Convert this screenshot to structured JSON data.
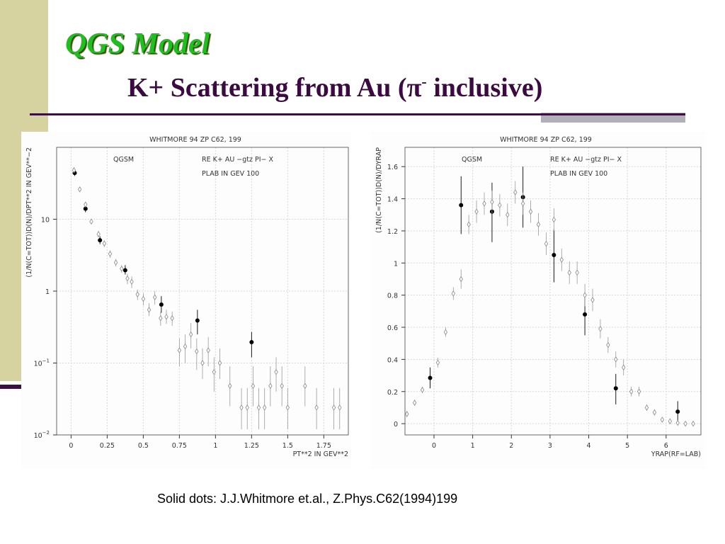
{
  "slide": {
    "title": "QGS Model",
    "subtitle_prefix": "K+ Scattering from Au (",
    "subtitle_pi": "π",
    "subtitle_sup": "-",
    "subtitle_suffix": " inclusive)",
    "caption": "Solid dots: J.J.Whitmore et.al., Z.Phys.C62(1994)199",
    "colors": {
      "title": "#1fbf1f",
      "subtitle": "#3a0a40",
      "sidebar": "#d6d3a0",
      "rule": "#3a1040"
    }
  },
  "chart_data": [
    {
      "type": "scatter",
      "header": "WHITMORE 94   ZP C62, 199",
      "model_label": "QGSM",
      "info_line1": "RE   K+ AU −gtz PI−  X",
      "info_line2": "PLAB IN GEV   100",
      "xlabel": "PT**2 IN GEV**2",
      "ylabel": "(1/N(C=TOT))D(N)/DPT**2 IN GEV**−2",
      "xlim": [
        -0.1,
        1.92
      ],
      "ylim": [
        0.01,
        100
      ],
      "yscale": "log",
      "grid": true,
      "xticks": [
        {
          "v": 0,
          "label": "0"
        },
        {
          "v": 0.25,
          "label": "0.25"
        },
        {
          "v": 0.5,
          "label": "0.5"
        },
        {
          "v": 0.75,
          "label": "0.75"
        },
        {
          "v": 1,
          "label": "1"
        },
        {
          "v": 1.25,
          "label": "1.25"
        },
        {
          "v": 1.5,
          "label": "1.5"
        },
        {
          "v": 1.75,
          "label": "1.75"
        }
      ],
      "yticks": [
        {
          "v": 0.01,
          "base": "10",
          "exp": "−2"
        },
        {
          "v": 0.1,
          "base": "10",
          "exp": "−1"
        },
        {
          "v": 1,
          "base": "1",
          "exp": ""
        },
        {
          "v": 10,
          "base": "10",
          "exp": ""
        }
      ],
      "series": [
        {
          "name": "Solid dots: J.J.Whitmore et.al., Z.Phys.C62(1994)199",
          "marker": "filled-circle",
          "points": [
            {
              "x": 0.025,
              "y": 44,
              "lo": 40,
              "hi": 48
            },
            {
              "x": 0.1,
              "y": 14,
              "lo": 12.5,
              "hi": 15.5
            },
            {
              "x": 0.2,
              "y": 5.1,
              "lo": 4.5,
              "hi": 5.8
            },
            {
              "x": 0.375,
              "y": 1.95,
              "lo": 1.7,
              "hi": 2.3
            },
            {
              "x": 0.625,
              "y": 0.65,
              "lo": 0.5,
              "hi": 0.85
            },
            {
              "x": 0.875,
              "y": 0.39,
              "lo": 0.25,
              "hi": 0.55
            },
            {
              "x": 1.25,
              "y": 0.195,
              "lo": 0.12,
              "hi": 0.27
            }
          ]
        },
        {
          "marker": "open-diamond",
          "points": [
            {
              "x": 0.02,
              "y": 48,
              "lo": 44,
              "hi": 53
            },
            {
              "x": 0.06,
              "y": 26,
              "lo": 24,
              "hi": 28
            },
            {
              "x": 0.1,
              "y": 16,
              "lo": 14.5,
              "hi": 17.5
            },
            {
              "x": 0.14,
              "y": 9.3,
              "lo": 8.5,
              "hi": 10.1
            },
            {
              "x": 0.19,
              "y": 6.2,
              "lo": 5.6,
              "hi": 6.9
            },
            {
              "x": 0.23,
              "y": 4.6,
              "lo": 4.1,
              "hi": 5.1
            },
            {
              "x": 0.27,
              "y": 3.3,
              "lo": 2.9,
              "hi": 3.7
            },
            {
              "x": 0.31,
              "y": 2.5,
              "lo": 2.2,
              "hi": 2.8
            },
            {
              "x": 0.35,
              "y": 2.05,
              "lo": 1.8,
              "hi": 2.3
            },
            {
              "x": 0.39,
              "y": 1.5,
              "lo": 1.25,
              "hi": 1.75
            },
            {
              "x": 0.42,
              "y": 1.35,
              "lo": 1.1,
              "hi": 1.6
            },
            {
              "x": 0.46,
              "y": 0.9,
              "lo": 0.75,
              "hi": 1.05
            },
            {
              "x": 0.5,
              "y": 0.78,
              "lo": 0.63,
              "hi": 0.93
            },
            {
              "x": 0.54,
              "y": 0.55,
              "lo": 0.45,
              "hi": 0.68
            },
            {
              "x": 0.58,
              "y": 0.82,
              "lo": 0.65,
              "hi": 1.0
            },
            {
              "x": 0.62,
              "y": 0.42,
              "lo": 0.33,
              "hi": 0.52
            },
            {
              "x": 0.66,
              "y": 0.44,
              "lo": 0.35,
              "hi": 0.55
            },
            {
              "x": 0.7,
              "y": 0.42,
              "lo": 0.33,
              "hi": 0.52
            },
            {
              "x": 0.75,
              "y": 0.15,
              "lo": 0.09,
              "hi": 0.22
            },
            {
              "x": 0.79,
              "y": 0.17,
              "lo": 0.1,
              "hi": 0.25
            },
            {
              "x": 0.83,
              "y": 0.25,
              "lo": 0.16,
              "hi": 0.36
            },
            {
              "x": 0.87,
              "y": 0.145,
              "lo": 0.08,
              "hi": 0.22
            },
            {
              "x": 0.91,
              "y": 0.1,
              "lo": 0.06,
              "hi": 0.16
            },
            {
              "x": 0.95,
              "y": 0.15,
              "lo": 0.09,
              "hi": 0.23
            },
            {
              "x": 0.99,
              "y": 0.075,
              "lo": 0.04,
              "hi": 0.12
            },
            {
              "x": 1.03,
              "y": 0.1,
              "lo": 0.06,
              "hi": 0.16
            },
            {
              "x": 1.1,
              "y": 0.048,
              "lo": 0.025,
              "hi": 0.09
            },
            {
              "x": 1.18,
              "y": 0.024,
              "lo": 0.012,
              "hi": 0.045
            },
            {
              "x": 1.22,
              "y": 0.024,
              "lo": 0.012,
              "hi": 0.045
            },
            {
              "x": 1.26,
              "y": 0.048,
              "lo": 0.025,
              "hi": 0.09
            },
            {
              "x": 1.3,
              "y": 0.024,
              "lo": 0.012,
              "hi": 0.045
            },
            {
              "x": 1.34,
              "y": 0.024,
              "lo": 0.012,
              "hi": 0.045
            },
            {
              "x": 1.38,
              "y": 0.048,
              "lo": 0.025,
              "hi": 0.09
            },
            {
              "x": 1.42,
              "y": 0.075,
              "lo": 0.04,
              "hi": 0.12
            },
            {
              "x": 1.46,
              "y": 0.048,
              "lo": 0.025,
              "hi": 0.09
            },
            {
              "x": 1.5,
              "y": 0.024,
              "lo": 0.012,
              "hi": 0.045
            },
            {
              "x": 1.62,
              "y": 0.048,
              "lo": 0.025,
              "hi": 0.09
            },
            {
              "x": 1.7,
              "y": 0.024,
              "lo": 0.012,
              "hi": 0.045
            },
            {
              "x": 1.82,
              "y": 0.024,
              "lo": 0.012,
              "hi": 0.045
            },
            {
              "x": 1.86,
              "y": 0.024,
              "lo": 0.012,
              "hi": 0.045
            }
          ]
        }
      ]
    },
    {
      "type": "scatter",
      "header": "WHITMORE 94   ZP C62, 199",
      "model_label": "QGSM",
      "info_line1": "RE   K+ AU −gtz PI−  X",
      "info_line2": "PLAB IN GEV   100",
      "xlabel": "YRAP(RF=LAB)",
      "ylabel": "(1/N(C=TOT))D(N)/DYRAP",
      "xlim": [
        -0.75,
        6.9
      ],
      "ylim": [
        -0.07,
        1.72
      ],
      "yscale": "linear",
      "grid": true,
      "xticks": [
        {
          "v": 0,
          "label": "0"
        },
        {
          "v": 1,
          "label": "1"
        },
        {
          "v": 2,
          "label": "2"
        },
        {
          "v": 3,
          "label": "3"
        },
        {
          "v": 4,
          "label": "4"
        },
        {
          "v": 5,
          "label": "5"
        },
        {
          "v": 6,
          "label": "6"
        }
      ],
      "yticks": [
        {
          "v": 0,
          "base": "0",
          "exp": ""
        },
        {
          "v": 0.2,
          "base": "0.2",
          "exp": ""
        },
        {
          "v": 0.4,
          "base": "0.4",
          "exp": ""
        },
        {
          "v": 0.6,
          "base": "0.6",
          "exp": ""
        },
        {
          "v": 0.8,
          "base": "0.8",
          "exp": ""
        },
        {
          "v": 1,
          "base": "1",
          "exp": ""
        },
        {
          "v": 1.2,
          "base": "1.2",
          "exp": ""
        },
        {
          "v": 1.4,
          "base": "1.4",
          "exp": ""
        },
        {
          "v": 1.6,
          "base": "1.6",
          "exp": ""
        }
      ],
      "series": [
        {
          "name": "Solid dots: J.J.Whitmore et.al., Z.Phys.C62(1994)199",
          "marker": "filled-circle",
          "points": [
            {
              "x": -0.1,
              "y": 0.285,
              "lo": 0.22,
              "hi": 0.35
            },
            {
              "x": 0.7,
              "y": 1.36,
              "lo": 1.18,
              "hi": 1.54
            },
            {
              "x": 1.5,
              "y": 1.32,
              "lo": 1.13,
              "hi": 1.5
            },
            {
              "x": 2.3,
              "y": 1.41,
              "lo": 1.22,
              "hi": 1.6
            },
            {
              "x": 3.1,
              "y": 1.05,
              "lo": 0.88,
              "hi": 1.21
            },
            {
              "x": 3.9,
              "y": 0.68,
              "lo": 0.55,
              "hi": 0.81
            },
            {
              "x": 4.7,
              "y": 0.22,
              "lo": 0.12,
              "hi": 0.31
            },
            {
              "x": 6.3,
              "y": 0.075,
              "lo": 0.01,
              "hi": 0.14
            }
          ]
        },
        {
          "marker": "open-diamond",
          "points": [
            {
              "x": -0.7,
              "y": 0.06,
              "lo": 0.04,
              "hi": 0.08
            },
            {
              "x": -0.5,
              "y": 0.13,
              "lo": 0.11,
              "hi": 0.15
            },
            {
              "x": -0.3,
              "y": 0.21,
              "lo": 0.19,
              "hi": 0.23
            },
            {
              "x": 0.1,
              "y": 0.38,
              "lo": 0.35,
              "hi": 0.41
            },
            {
              "x": 0.3,
              "y": 0.57,
              "lo": 0.54,
              "hi": 0.6
            },
            {
              "x": 0.5,
              "y": 0.81,
              "lo": 0.77,
              "hi": 0.85
            },
            {
              "x": 0.7,
              "y": 0.9,
              "lo": 0.84,
              "hi": 0.96
            },
            {
              "x": 0.9,
              "y": 1.24,
              "lo": 1.18,
              "hi": 1.3
            },
            {
              "x": 1.1,
              "y": 1.32,
              "lo": 1.25,
              "hi": 1.39
            },
            {
              "x": 1.3,
              "y": 1.37,
              "lo": 1.3,
              "hi": 1.44
            },
            {
              "x": 1.5,
              "y": 1.38,
              "lo": 1.31,
              "hi": 1.45
            },
            {
              "x": 1.7,
              "y": 1.36,
              "lo": 1.29,
              "hi": 1.43
            },
            {
              "x": 1.9,
              "y": 1.3,
              "lo": 1.23,
              "hi": 1.37
            },
            {
              "x": 2.1,
              "y": 1.44,
              "lo": 1.37,
              "hi": 1.51
            },
            {
              "x": 2.3,
              "y": 1.37,
              "lo": 1.3,
              "hi": 1.44
            },
            {
              "x": 2.5,
              "y": 1.32,
              "lo": 1.25,
              "hi": 1.39
            },
            {
              "x": 2.7,
              "y": 1.24,
              "lo": 1.17,
              "hi": 1.31
            },
            {
              "x": 2.9,
              "y": 1.12,
              "lo": 1.05,
              "hi": 1.19
            },
            {
              "x": 3.1,
              "y": 1.27,
              "lo": 1.2,
              "hi": 1.34
            },
            {
              "x": 3.3,
              "y": 1.02,
              "lo": 0.95,
              "hi": 1.09
            },
            {
              "x": 3.5,
              "y": 0.94,
              "lo": 0.87,
              "hi": 1.01
            },
            {
              "x": 3.7,
              "y": 0.94,
              "lo": 0.87,
              "hi": 1.01
            },
            {
              "x": 3.9,
              "y": 0.8,
              "lo": 0.73,
              "hi": 0.87
            },
            {
              "x": 4.1,
              "y": 0.77,
              "lo": 0.7,
              "hi": 0.84
            },
            {
              "x": 4.3,
              "y": 0.59,
              "lo": 0.53,
              "hi": 0.65
            },
            {
              "x": 4.5,
              "y": 0.49,
              "lo": 0.44,
              "hi": 0.54
            },
            {
              "x": 4.7,
              "y": 0.4,
              "lo": 0.35,
              "hi": 0.45
            },
            {
              "x": 4.9,
              "y": 0.35,
              "lo": 0.3,
              "hi": 0.4
            },
            {
              "x": 5.1,
              "y": 0.2,
              "lo": 0.17,
              "hi": 0.23
            },
            {
              "x": 5.3,
              "y": 0.2,
              "lo": 0.17,
              "hi": 0.23
            },
            {
              "x": 5.5,
              "y": 0.1,
              "lo": 0.08,
              "hi": 0.12
            },
            {
              "x": 5.7,
              "y": 0.07,
              "lo": 0.05,
              "hi": 0.09
            },
            {
              "x": 5.9,
              "y": 0.025,
              "lo": 0.015,
              "hi": 0.035
            },
            {
              "x": 6.1,
              "y": 0.015,
              "lo": 0.008,
              "hi": 0.022
            },
            {
              "x": 6.3,
              "y": 0.005,
              "lo": 0.0,
              "hi": 0.01
            },
            {
              "x": 6.5,
              "y": 0.0,
              "lo": 0.0,
              "hi": 0.004
            },
            {
              "x": 6.7,
              "y": 0.0,
              "lo": 0.0,
              "hi": 0.004
            }
          ]
        }
      ]
    }
  ]
}
